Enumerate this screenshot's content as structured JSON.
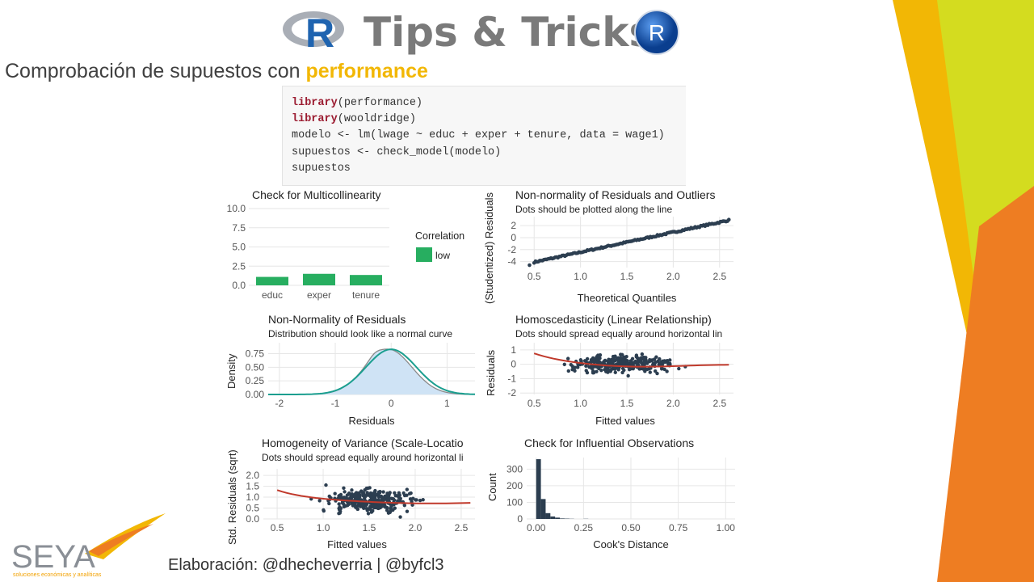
{
  "header": {
    "title": "Tips & Tricks",
    "r_logo_letter": "R",
    "r_badge_letter": "R",
    "subtitle_prefix": "Comprobación de supuestos con ",
    "subtitle_pkg": "performance"
  },
  "code": {
    "lines": [
      {
        "kw": "library",
        "rest": "(performance)"
      },
      {
        "kw": "library",
        "rest": "(wooldridge)"
      },
      {
        "kw": "",
        "rest": "modelo <- lm(lwage ~ educ + exper + tenure, data = wage1)"
      },
      {
        "kw": "",
        "rest": "supuestos <- check_model(modelo)"
      },
      {
        "kw": "",
        "rest": "supuestos"
      }
    ]
  },
  "colors": {
    "accent_yellow": "#f2b705",
    "lime": "#d4dc1f",
    "orange": "#ee7d22",
    "bar_green": "#27ae60",
    "dot_navy": "#2c3e50",
    "loess_red": "#c0392b",
    "teal": "#1a9e8f"
  },
  "footer": {
    "credits": "Elaboración: @dhecheverria | @byfcl3"
  },
  "logo": {
    "brand": "SEYA",
    "tagline": "soluciones económicas y analíticas"
  },
  "chart_data": [
    {
      "type": "bar",
      "title": "Check for Multicollinearity",
      "categories": [
        "educ",
        "exper",
        "tenure"
      ],
      "values": [
        1.1,
        1.5,
        1.35
      ],
      "ylim": [
        0,
        10
      ],
      "yticks": [
        "10.0",
        "7.5",
        "5.0",
        "2.5",
        "0.0"
      ],
      "legend_title": "Correlation",
      "legend_item": "low",
      "grid": true
    },
    {
      "type": "scatter",
      "title": "Non-normality of Residuals and Outliers",
      "subtitle": "Dots should be plotted along the line",
      "xlabel": "Theoretical Quantiles",
      "ylabel": "(Studentized) Residuals",
      "xticks": [
        "0.5",
        "1.0",
        "1.5",
        "2.0",
        "2.5"
      ],
      "yticks": [
        "2",
        "0",
        "-2",
        "-4"
      ],
      "xlim": [
        0.35,
        2.65
      ],
      "ylim": [
        -5,
        3.5
      ]
    },
    {
      "type": "area",
      "title": "Non-Normality of Residuals",
      "subtitle": "Distribution should look like a normal curve",
      "xlabel": "Residuals",
      "ylabel": "Density",
      "xticks": [
        "-2",
        "-1",
        "0",
        "1"
      ],
      "yticks": [
        "0.75",
        "0.50",
        "0.25",
        "0.00"
      ],
      "xlim": [
        -2.2,
        1.5
      ],
      "ylim": [
        0,
        0.95
      ]
    },
    {
      "type": "scatter",
      "title": "Homoscedasticity (Linear Relationship)",
      "subtitle": "Dots should spread equally around horizontal lin",
      "xlabel": "Fitted values",
      "ylabel": "Residuals",
      "xticks": [
        "0.5",
        "1.0",
        "1.5",
        "2.0",
        "2.5"
      ],
      "yticks": [
        "1",
        "0",
        "-1",
        "-2"
      ],
      "xlim": [
        0.35,
        2.65
      ],
      "ylim": [
        -2.1,
        1.5
      ]
    },
    {
      "type": "scatter",
      "title": "Homogeneity of Variance (Scale-Locatio",
      "subtitle": "Dots should spread equally around horizontal li",
      "xlabel": "Fitted values",
      "ylabel": "Std. Residuals (sqrt)",
      "xticks": [
        "0.5",
        "1.0",
        "1.5",
        "2.0",
        "2.5"
      ],
      "yticks": [
        "2.0",
        "1.5",
        "1.0",
        "0.5",
        "0.0"
      ],
      "xlim": [
        0.35,
        2.65
      ],
      "ylim": [
        0,
        2.3
      ]
    },
    {
      "type": "bar",
      "title": "Check for Influential Observations",
      "xlabel": "Cook's Distance",
      "ylabel": "Count",
      "xticks": [
        "0.00",
        "0.25",
        "0.50",
        "0.75",
        "1.00"
      ],
      "yticks": [
        "300",
        "200",
        "100",
        "0"
      ],
      "bins_x": [
        0.0,
        0.025,
        0.05,
        0.075,
        0.1,
        0.125,
        0.15,
        0.175,
        0.2,
        0.225,
        0.25,
        0.275
      ],
      "counts": [
        360,
        120,
        35,
        15,
        8,
        3,
        2,
        1,
        0,
        0,
        1,
        0
      ],
      "xlim": [
        -0.05,
        1.05
      ],
      "ylim": [
        0,
        370
      ]
    }
  ]
}
